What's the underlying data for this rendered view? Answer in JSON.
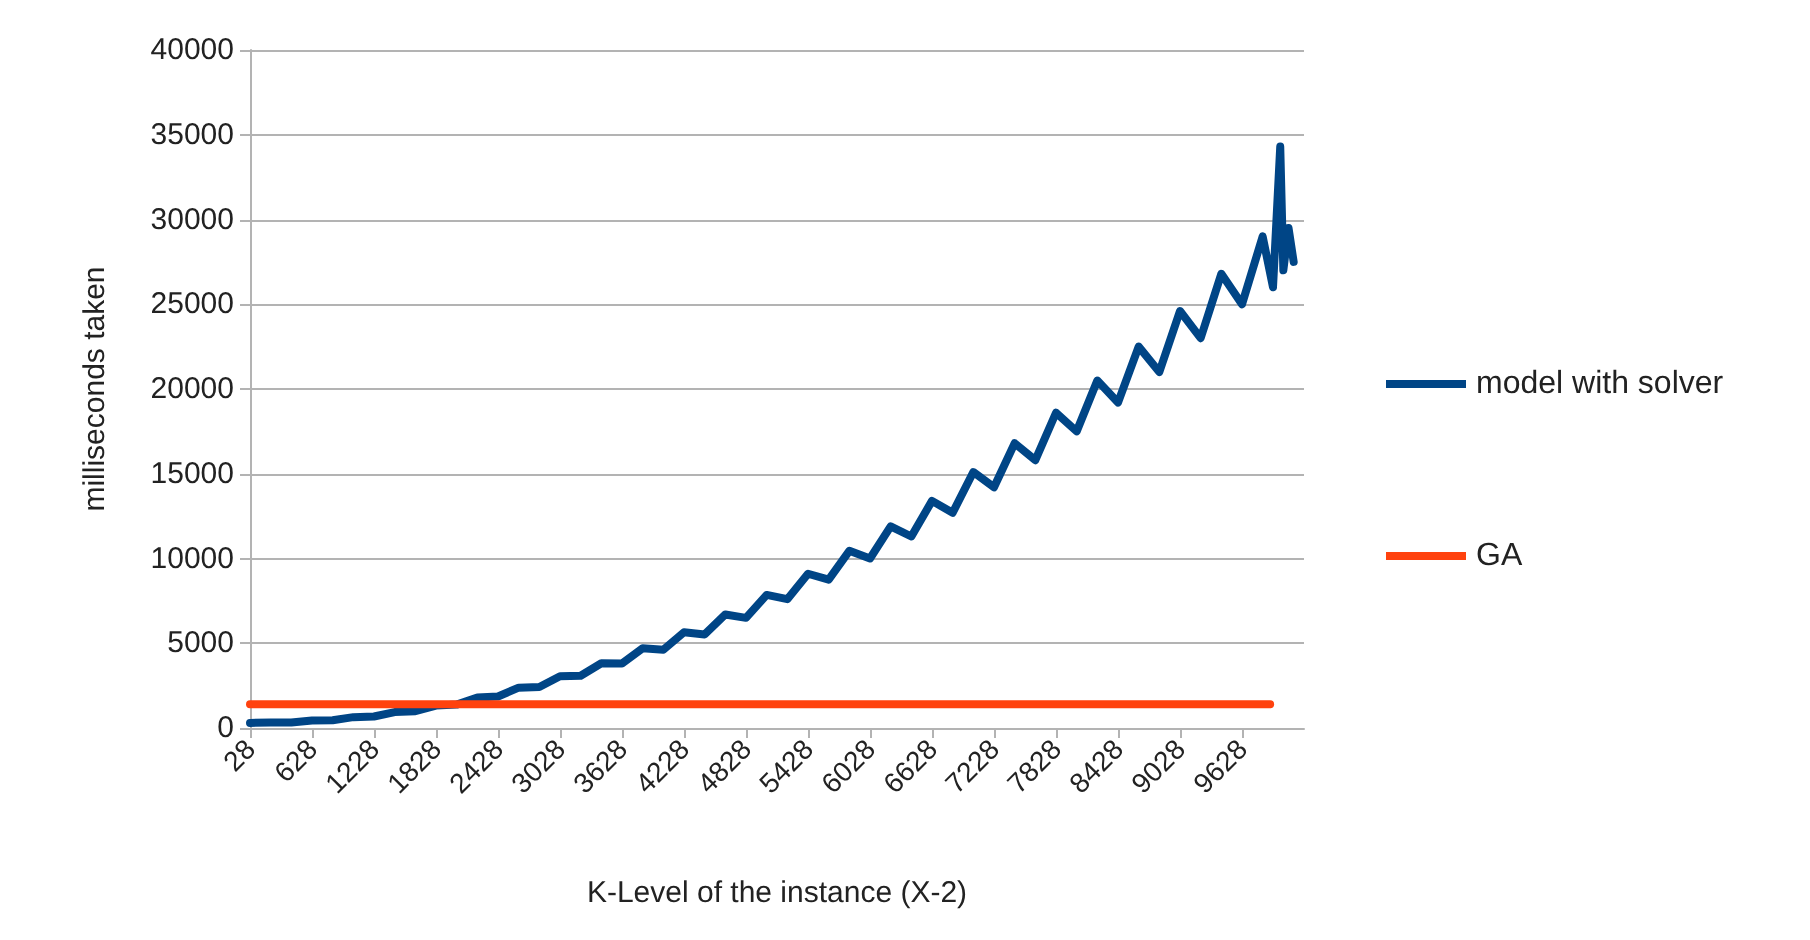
{
  "chart_data": {
    "type": "line",
    "xlabel": "K-Level of the instance (X-2)",
    "ylabel": "milliseconds taken",
    "xlim": [
      28,
      10228
    ],
    "xticks": [
      28,
      628,
      1228,
      1828,
      2428,
      3028,
      3628,
      4228,
      4828,
      5428,
      6028,
      6628,
      7228,
      7828,
      8428,
      9028,
      9628
    ],
    "ylim": [
      0,
      40000
    ],
    "yticks": [
      0,
      5000,
      10000,
      15000,
      20000,
      25000,
      30000,
      35000,
      40000
    ],
    "grid": "y",
    "legend": "right",
    "marker": "none",
    "line_style": "solid",
    "series": [
      {
        "name": "model with solver",
        "color": "#004586",
        "x": [
          28,
          228,
          428,
          628,
          828,
          1028,
          1228,
          1428,
          1628,
          1828,
          2028,
          2228,
          2428,
          2628,
          2828,
          3028,
          3228,
          3428,
          3628,
          3828,
          4028,
          4228,
          4428,
          4628,
          4828,
          5028,
          5228,
          5428,
          5628,
          5828,
          6028,
          6228,
          6428,
          6628,
          6828,
          7028,
          7228,
          7428,
          7628,
          7828,
          8028,
          8228,
          8428,
          8628,
          8828,
          9028,
          9228,
          9428,
          9628,
          9828,
          9928,
          9998,
          10028,
          10078,
          10128
        ],
        "values": [
          300,
          330,
          320,
          440,
          460,
          640,
          680,
          940,
          990,
          1320,
          1380,
          1800,
          1860,
          2380,
          2420,
          3050,
          3080,
          3820,
          3800,
          4700,
          4620,
          5650,
          5520,
          6700,
          6500,
          7850,
          7600,
          9100,
          8750,
          10450,
          10000,
          11900,
          11300,
          13400,
          12700,
          15100,
          14200,
          16800,
          15800,
          18600,
          17500,
          20500,
          19200,
          22500,
          21000,
          24600,
          23000,
          26800,
          25000,
          29000,
          26000,
          34300,
          27000,
          29500,
          27500
        ]
      },
      {
        "name": "GA",
        "color": "#ff420e",
        "x": [
          28,
          9900
        ],
        "values": [
          1400,
          1400
        ]
      }
    ]
  }
}
